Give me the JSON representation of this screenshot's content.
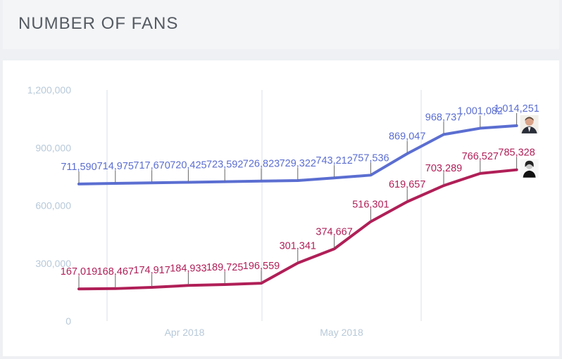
{
  "header": {
    "title": "NUMBER OF FANS"
  },
  "chart_data": {
    "type": "line",
    "title": "NUMBER OF FANS",
    "ylim": [
      0,
      1200000
    ],
    "y_ticks": [
      "1,200,000",
      "900,000",
      "600,000",
      "300,000",
      "0"
    ],
    "y_tick_values": [
      1200000,
      900000,
      600000,
      300000,
      0
    ],
    "x_tick_labels": [
      "Apr 2018",
      "May 2018"
    ],
    "grid": "vertical",
    "series": [
      {
        "color": "#5b6ed1",
        "avatar_icon": "man-portrait-icon",
        "values": [
          711590,
          714975,
          717670,
          720425,
          723592,
          726823,
          729322,
          743212,
          757536,
          869047,
          968737,
          1001082,
          1014251
        ],
        "labels": [
          "711,590",
          "714,975",
          "717,670",
          "720,425",
          "723,592",
          "726,823",
          "729,322",
          "743,212",
          "757,536",
          "869,047",
          "968,737",
          "1,001,082",
          "1,014,251"
        ]
      },
      {
        "color": "#b01f57",
        "avatar_icon": "woman-portrait-icon",
        "values": [
          167019,
          168467,
          174917,
          184933,
          189725,
          196559,
          301341,
          374667,
          516301,
          619657,
          703289,
          766527,
          785328
        ],
        "labels": [
          "167,019",
          "168,467",
          "174,917",
          "184,933",
          "189,725",
          "196,559",
          "301,341",
          "374,667",
          "516,301",
          "619,657",
          "703,289",
          "766,527",
          "785,328"
        ]
      }
    ]
  }
}
